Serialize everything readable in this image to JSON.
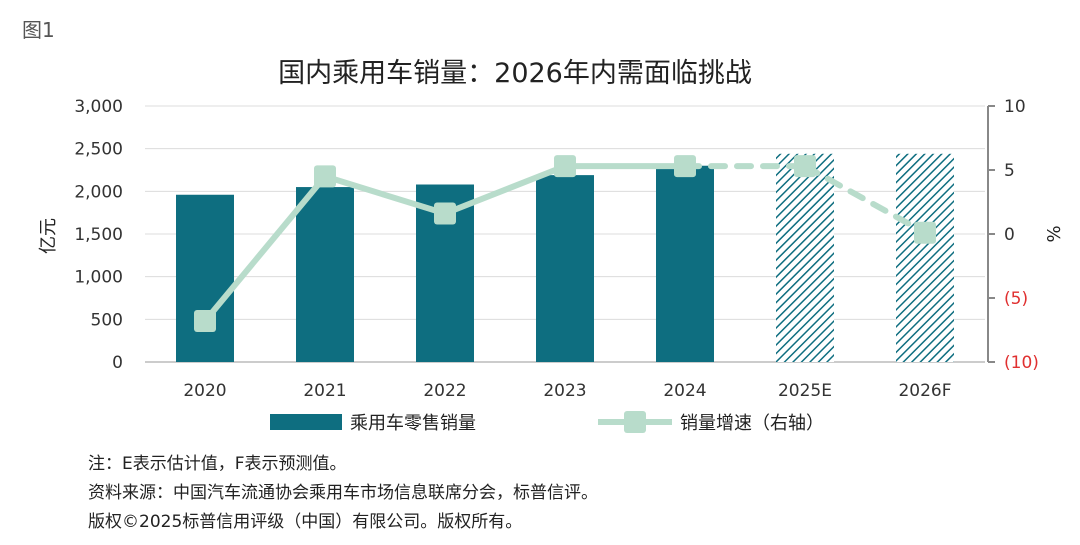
{
  "figure_label": "图1",
  "chart_data": {
    "type": "bar",
    "title": "国内乘用车销量：2026年内需面临挑战",
    "categories": [
      "2020",
      "2021",
      "2022",
      "2023",
      "2024",
      "2025E",
      "2026F"
    ],
    "ylabel": "亿元",
    "y2label": "%",
    "ylim": [
      0,
      3000
    ],
    "y2lim": [
      -10,
      10
    ],
    "y_ticks": [
      "3,000",
      "2,500",
      "2,000",
      "1,500",
      "1,000",
      "500",
      "0"
    ],
    "y2_ticks": [
      "10",
      "5",
      "0",
      "(5)",
      "(10)"
    ],
    "series": [
      {
        "name": "乘用车零售销量",
        "kind": "bar",
        "axis": "left",
        "values": [
          1960,
          2050,
          2080,
          2190,
          2300,
          2440,
          2440
        ],
        "estimated": [
          false,
          false,
          false,
          false,
          false,
          true,
          true
        ]
      },
      {
        "name": "销量增速（右轴）",
        "kind": "line",
        "axis": "right",
        "values": [
          -6.8,
          4.5,
          1.6,
          5.3,
          5.3,
          5.3,
          0.1
        ],
        "estimated": [
          false,
          false,
          false,
          false,
          false,
          true,
          true
        ]
      }
    ],
    "colors": {
      "bar": "#0e6e80",
      "line": "#b8dccb",
      "negative_tick": "#e03030"
    }
  },
  "notes": [
    "注：E表示估计值，F表示预测值。",
    "资料来源：中国汽车流通协会乘用车市场信息联席分会，标普信评。",
    "版权©2025标普信用评级（中国）有限公司。版权所有。"
  ]
}
